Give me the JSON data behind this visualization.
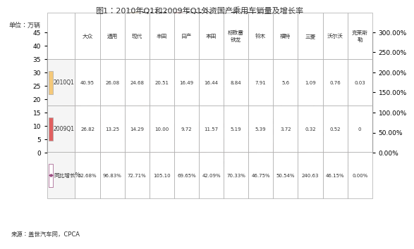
{
  "title": "图1：2010年Q1和2009年Q1外资国产乘用车销量及增长率",
  "ylabel_left": "单位：万辆",
  "categories": [
    "大众",
    "通用",
    "现代",
    "丰田",
    "日产",
    "本田",
    "标致雷\n铁龙",
    "铃木",
    "福特",
    "三菱",
    "沃尔沃",
    "克莱斯\n勒"
  ],
  "categories_header": [
    "大众",
    "通用",
    "现代",
    "丰田",
    "日产",
    "本田",
    "标致雷\n铁龙",
    "铃木",
    "福特",
    "三菱",
    "沃尔沃",
    "克莱斯\n勒"
  ],
  "values_2010": [
    40.95,
    26.08,
    24.68,
    20.51,
    16.49,
    16.44,
    8.84,
    7.91,
    5.6,
    1.09,
    0.76,
    0.03
  ],
  "values_2009": [
    26.82,
    13.25,
    14.29,
    10.0,
    9.72,
    11.57,
    5.19,
    5.39,
    3.72,
    0.32,
    0.52,
    0
  ],
  "growth_rate": [
    52.68,
    96.83,
    72.71,
    105.1,
    69.65,
    42.09,
    70.33,
    46.75,
    50.54,
    240.63,
    46.15,
    0.0
  ],
  "growth_labels": [
    "52.68%",
    "96.83%",
    "72.71%",
    "105.10%",
    "69.65%",
    "42.09%",
    "70.33%",
    "46.75%",
    "50.54%",
    "240.63%",
    "46.15%",
    "0.00%"
  ],
  "bar_color_2010": "#F5C97A",
  "bar_color_2009": "#E06060",
  "line_color": "#9B4F82",
  "marker_color": "#9B4F82",
  "source_text": "来源：盖世汽车网，CPCA",
  "ylim_left": [
    0,
    45
  ],
  "ylim_right": [
    0,
    300
  ],
  "yticks_left": [
    0,
    5,
    10,
    15,
    20,
    25,
    30,
    35,
    40,
    45
  ],
  "yticks_right": [
    0,
    50,
    100,
    150,
    200,
    250,
    300
  ],
  "ytick_labels_right": [
    "0.00%",
    "50.00%",
    "100.00%",
    "150.00%",
    "200.00%",
    "250.00%",
    "300.00%"
  ],
  "bg_color": "#FFFFFF",
  "grid_color": "#CCCCCC",
  "table_data": [
    [
      "40.95",
      "26.08",
      "24.68",
      "20.51",
      "16.49",
      "16.44",
      "8.84",
      "7.91",
      "5.6",
      "1.09",
      "0.76",
      "0.03"
    ],
    [
      "26.82",
      "13.25",
      "14.29",
      "10.00",
      "9.72",
      "11.57",
      "5.19",
      "5.39",
      "3.72",
      "0.32",
      "0.52",
      "0"
    ],
    [
      "52.68%",
      "96.83%",
      "72.71%",
      "105.10",
      "69.65%",
      "42.09%",
      "70.33%",
      "46.75%",
      "50.54%",
      "240.63",
      "46.15%",
      "0.00%"
    ]
  ],
  "row_labels": [
    "2010Q1",
    "2009Q1",
    "同比增长%"
  ]
}
